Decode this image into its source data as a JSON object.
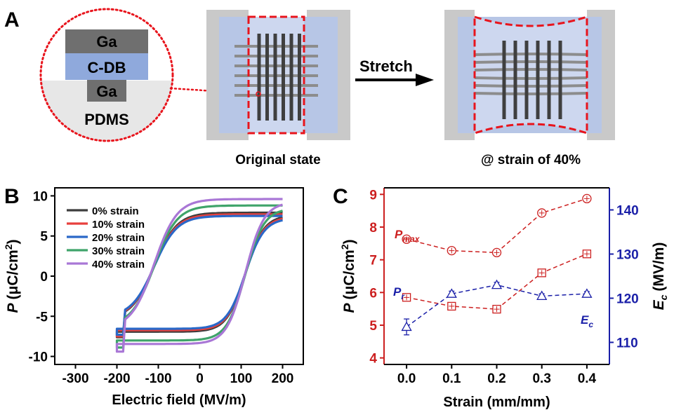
{
  "panels": {
    "a": "A",
    "b": "B",
    "c": "C"
  },
  "panel_a": {
    "layers": [
      "Ga",
      "C-DB",
      "Ga",
      "PDMS"
    ],
    "arrow_label": "Stretch",
    "caption_original": "Original state",
    "caption_stretched": "@ strain of 40%",
    "colors": {
      "electrode": "#4a4a4a",
      "cdb": "#8fa9dc",
      "substrate": "#c8d3ec",
      "clamp": "#c9c9c9",
      "dash": "#e8141c"
    }
  },
  "chart_data": [
    {
      "type": "line",
      "panel": "B",
      "xlabel": "Electric field (MV/m)",
      "ylabel": "P (μC/cm²)",
      "ylabel_parts": {
        "italic": "P",
        "unit": "(μC/cm",
        "sup": "2",
        "close": ")"
      },
      "xlim": [
        -350,
        250
      ],
      "ylim": [
        -11,
        11
      ],
      "x_ticks": [
        -300,
        -200,
        -100,
        0,
        100,
        200
      ],
      "y_ticks": [
        -10,
        -5,
        0,
        5,
        10
      ],
      "legend_position": "top-left",
      "series": [
        {
          "name": "0% strain",
          "color": "#3d3d3d",
          "emax": 200,
          "pmax": 7.9,
          "pmin": -7.7,
          "top_left": -4.3,
          "top_right": 7.8,
          "bottom_left": -7.5,
          "bottom_right": -5.7,
          "left_end": -7.6,
          "right_end": 7.9
        },
        {
          "name": "10% strain",
          "color": "#e8403d",
          "emax": 200,
          "pmax": 7.7,
          "pmin": -7.5,
          "top_left": -4.1,
          "top_right": 7.6,
          "bottom_left": -7.4,
          "bottom_right": -5.6,
          "left_end": -7.5,
          "right_end": 7.7
        },
        {
          "name": "20% strain",
          "color": "#2a68c8",
          "emax": 200,
          "pmax": 7.5,
          "pmin": -7.3,
          "top_left": -4.0,
          "top_right": 7.3,
          "bottom_left": -7.2,
          "bottom_right": -5.5,
          "left_end": -7.3,
          "right_end": 7.5
        },
        {
          "name": "30% strain",
          "color": "#3fa46a",
          "emax": 200,
          "pmax": 8.8,
          "pmin": -8.9,
          "top_left": -4.6,
          "top_right": 8.7,
          "bottom_left": -8.7,
          "bottom_right": -6.3,
          "left_end": -8.9,
          "right_end": 8.8
        },
        {
          "name": "40% strain",
          "color": "#a977d6",
          "emax": 200,
          "pmax": 9.6,
          "pmin": -9.4,
          "top_left": -5.1,
          "top_right": 9.4,
          "bottom_left": -9.5,
          "bottom_right": -7.0,
          "left_end": -9.4,
          "right_end": 9.6
        }
      ]
    },
    {
      "type": "line",
      "panel": "C",
      "xlabel": "Strain (mm/mm)",
      "ylabel_left": "P (μC/cm²)",
      "ylabel_left_parts": {
        "italic": "P",
        "unit": "(μC/cm",
        "sup": "2",
        "close": ")"
      },
      "ylabel_right": "Ec (MV/m)",
      "ylabel_right_parts": {
        "italic": "E",
        "sub": "c",
        "unit": "(MV/m)"
      },
      "xlim": [
        -0.05,
        0.45
      ],
      "ylim_left": [
        3.8,
        9.2
      ],
      "ylim_right": [
        105,
        145
      ],
      "x_ticks": [
        0.0,
        0.1,
        0.2,
        0.3,
        0.4
      ],
      "x_tick_labels": [
        "0.0",
        "0.1",
        "0.2",
        "0.3",
        "0.4"
      ],
      "y_ticks_left": [
        4,
        5,
        6,
        7,
        8,
        9
      ],
      "y_ticks_right": [
        110,
        120,
        130,
        140
      ],
      "colors": {
        "left": "#cc1f1f",
        "right": "#1a1fa8"
      },
      "x": [
        0.0,
        0.1,
        0.2,
        0.3,
        0.4
      ],
      "series": [
        {
          "name": "P_max",
          "label_main": "P",
          "label_sub": "max",
          "axis": "left",
          "marker": "circle-plus",
          "values": [
            7.63,
            7.28,
            7.22,
            8.43,
            8.87
          ]
        },
        {
          "name": "P_r",
          "label_main": "P",
          "label_sub": "r",
          "axis": "left",
          "marker": "square-plus",
          "values": [
            5.85,
            5.58,
            5.49,
            6.6,
            7.18
          ]
        },
        {
          "name": "E_c",
          "label_main": "E",
          "label_sub": "c",
          "axis": "right",
          "marker": "triangle",
          "values": [
            113.5,
            121.0,
            123.0,
            120.5,
            121.0
          ],
          "errors": [
            1.8,
            0.6,
            0.6,
            0.5,
            0.5
          ]
        }
      ]
    }
  ]
}
